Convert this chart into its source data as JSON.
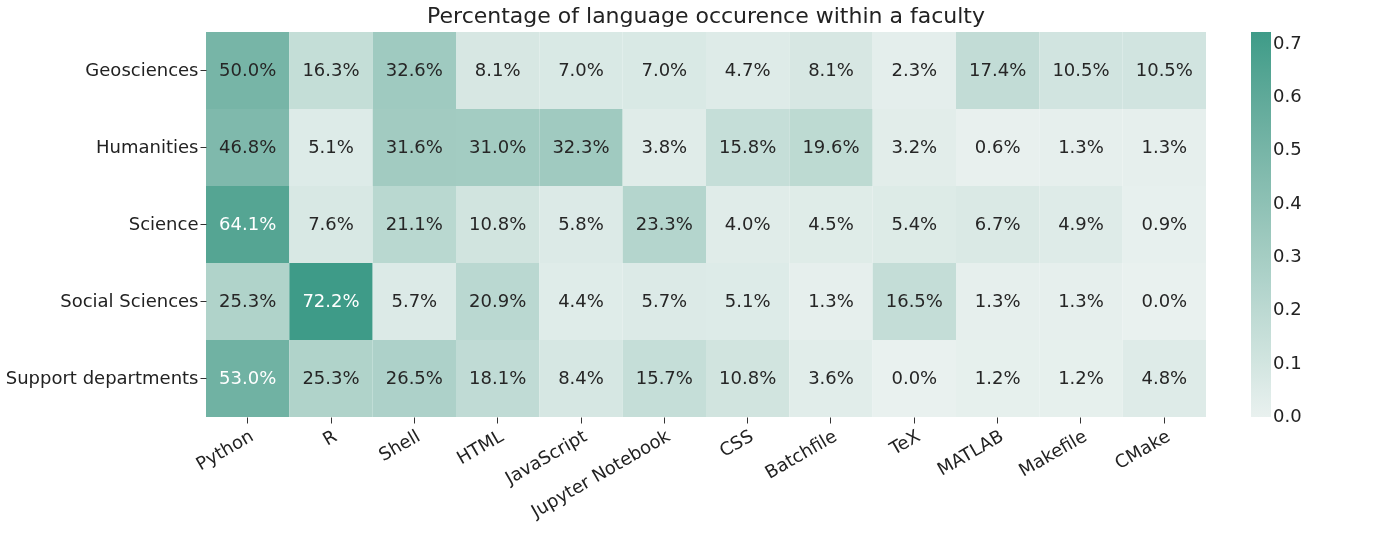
{
  "chart_data": {
    "type": "heatmap",
    "title": "Percentage of language occurence within a faculty",
    "categories": [
      "Python",
      "R",
      "Shell",
      "HTML",
      "JavaScript",
      "Jupyter Notebook",
      "CSS",
      "Batchfile",
      "TeX",
      "MATLAB",
      "Makefile",
      "CMake"
    ],
    "y_categories": [
      "Geosciences",
      "Humanities",
      "Science",
      "Social Sciences",
      "Support departments"
    ],
    "cells": [
      [
        0.5,
        0.163,
        0.326,
        0.081,
        0.07,
        0.07,
        0.047,
        0.081,
        0.023,
        0.174,
        0.105,
        0.105
      ],
      [
        0.468,
        0.051,
        0.316,
        0.31,
        0.323,
        0.038,
        0.158,
        0.196,
        0.032,
        0.006,
        0.013,
        0.013
      ],
      [
        0.641,
        0.076,
        0.211,
        0.108,
        0.058,
        0.233,
        0.04,
        0.045,
        0.054,
        0.067,
        0.049,
        0.009
      ],
      [
        0.253,
        0.722,
        0.057,
        0.209,
        0.044,
        0.057,
        0.051,
        0.013,
        0.165,
        0.013,
        0.013,
        0.0
      ],
      [
        0.53,
        0.253,
        0.265,
        0.181,
        0.084,
        0.157,
        0.108,
        0.036,
        0.0,
        0.012,
        0.012,
        0.048
      ]
    ],
    "cell_labels": [
      [
        "50.0%",
        "16.3%",
        "32.6%",
        "8.1%",
        "7.0%",
        "7.0%",
        "4.7%",
        "8.1%",
        "2.3%",
        "17.4%",
        "10.5%",
        "10.5%"
      ],
      [
        "46.8%",
        "5.1%",
        "31.6%",
        "31.0%",
        "32.3%",
        "3.8%",
        "15.8%",
        "19.6%",
        "3.2%",
        "0.6%",
        "1.3%",
        "1.3%"
      ],
      [
        "64.1%",
        "7.6%",
        "21.1%",
        "10.8%",
        "5.8%",
        "23.3%",
        "4.0%",
        "4.5%",
        "5.4%",
        "6.7%",
        "4.9%",
        "0.9%"
      ],
      [
        "25.3%",
        "72.2%",
        "5.7%",
        "20.9%",
        "4.4%",
        "5.7%",
        "5.1%",
        "1.3%",
        "16.5%",
        "1.3%",
        "1.3%",
        "0.0%"
      ],
      [
        "53.0%",
        "25.3%",
        "26.5%",
        "18.1%",
        "8.4%",
        "15.7%",
        "10.8%",
        "3.6%",
        "0.0%",
        "1.2%",
        "1.2%",
        "4.8%"
      ]
    ],
    "clim": [
      0,
      0.722
    ],
    "cticks": [
      {
        "value": 0,
        "label": "0.0"
      },
      0.1,
      0.2,
      0.3,
      0.4,
      0.5,
      0.6,
      0.7
    ]
  }
}
